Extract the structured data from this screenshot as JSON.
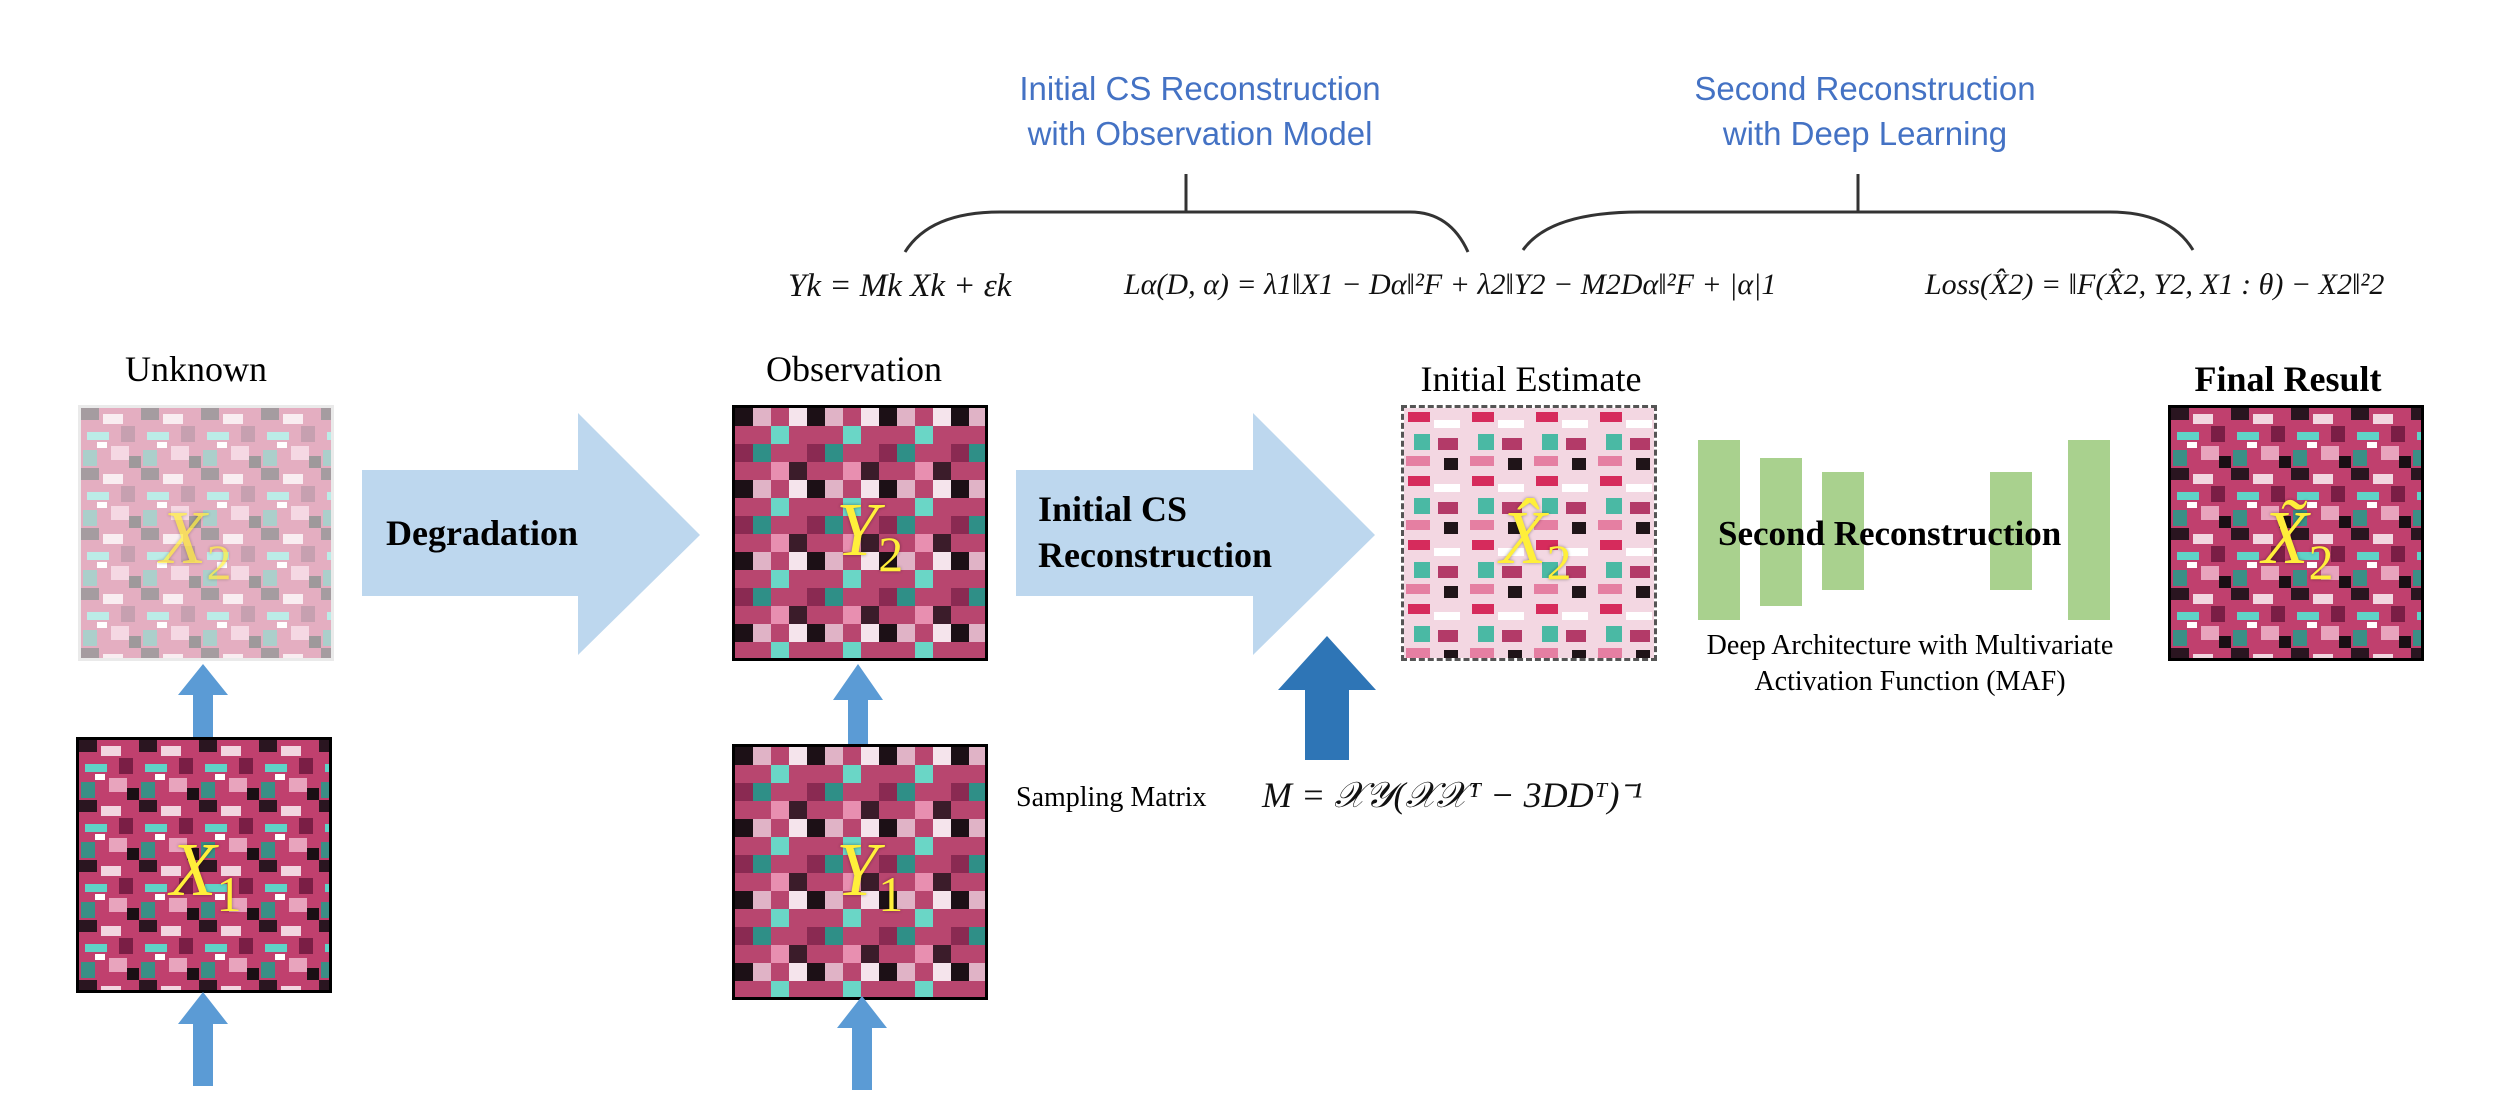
{
  "headers": {
    "initial": [
      "Initial CS Reconstruction",
      "with Observation Model"
    ],
    "second": [
      "Second Reconstruction",
      "with Deep Learning"
    ]
  },
  "equations": {
    "obs_model": "Yk = Mk Xk + εk",
    "cs_objective": "Lα(D, α) = λ1‖X1 − Dα‖²F + λ2‖Y2 − M2Dα‖²F + |α|1",
    "loss": "Loss(X̂2) = ‖F(X̂2, Y2, X1 : θ) − X2‖²2",
    "sampling_matrix": "M = 𝒳𝒴(𝒳𝒳ᵀ − 3DDᵀ)⁻¹"
  },
  "labels": {
    "unknown": "Unknown",
    "observation": "Observation",
    "initial_estimate": "Initial Estimate",
    "final_result": "Final Result",
    "degradation": "Degradation",
    "initial_cs_line1": "Initial CS",
    "initial_cs_line2": "Reconstruction",
    "second_reconstruction": "Second Reconstruction",
    "sampling_matrix": "Sampling Matrix",
    "deep_arch_line1": "Deep Architecture with Multivariate",
    "deep_arch_line2": "Activation Function (MAF)"
  },
  "symbols": {
    "x2": "X",
    "x2_sub": "2",
    "x1": "X",
    "x1_sub": "1",
    "y2": "Y",
    "y2_sub": "2",
    "y1": "Y",
    "y1_sub": "1",
    "x2_hat": "X̂",
    "x2_hat_sub": "2",
    "x2_tilde": "X̃",
    "x2_tilde_sub": "2"
  },
  "colors": {
    "header_blue": "#4472c4",
    "arrow_light": "#bdd7ee",
    "arrow_mid": "#5b9bd5",
    "arrow_dark": "#2e75b6",
    "net_green": "#a9d18e",
    "symbol_yellow": "#ffef3a"
  }
}
